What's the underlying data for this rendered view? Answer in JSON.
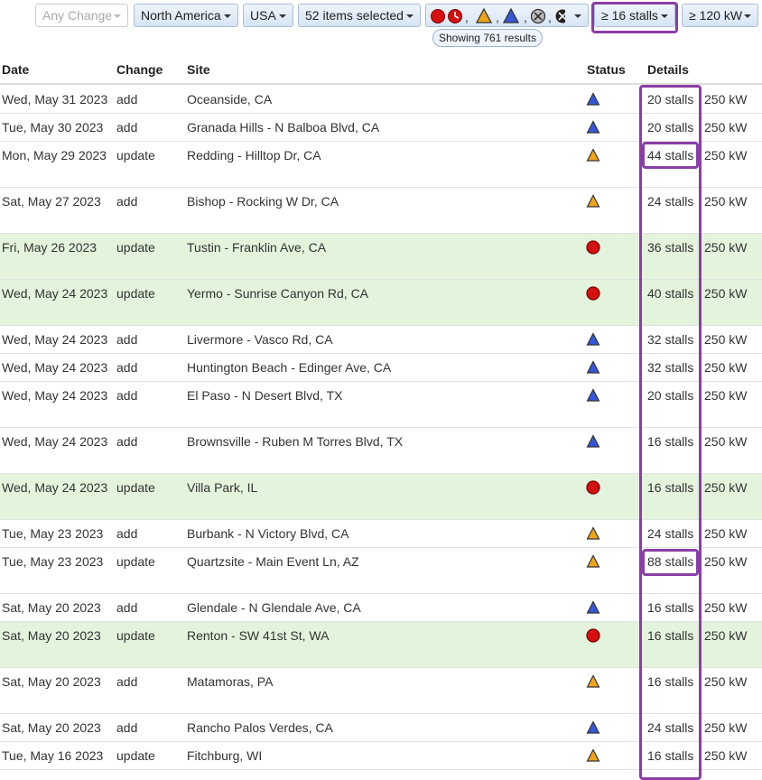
{
  "filters": {
    "change": "Any Change",
    "region": "North America",
    "country": "USA",
    "items": "52 items selected",
    "separator": ",",
    "stalls": "≥ 16 stalls",
    "power": "≥ 120 kW",
    "results": "Showing 761 results"
  },
  "table": {
    "headers": [
      "Date",
      "Change",
      "Site",
      "Status",
      "Details"
    ],
    "rows": [
      {
        "date": "Wed, May 31 2023",
        "change": "add",
        "site": "Oceanside, CA",
        "status": "triangle",
        "color": "#3557d6",
        "stalls": "20 stalls",
        "power": "250 kW",
        "highlight": false
      },
      {
        "date": "Tue, May 30 2023",
        "change": "add",
        "site": "Granada Hills - N Balboa Blvd, CA",
        "status": "triangle",
        "color": "#3557d6",
        "stalls": "20 stalls",
        "power": "250 kW",
        "highlight": false
      },
      {
        "date": "Mon, May 29 2023",
        "change": "update",
        "site": "Redding - Hilltop Dr, CA",
        "status": "triangle",
        "color": "#f0a418",
        "stalls": "44 stalls",
        "power": "250 kW",
        "highlight": false
      },
      {
        "date": "Sat, May 27 2023",
        "change": "add",
        "site": "Bishop - Rocking W Dr, CA",
        "status": "triangle",
        "color": "#f0a418",
        "stalls": "24 stalls",
        "power": "250 kW",
        "highlight": false
      },
      {
        "date": "Fri, May 26 2023",
        "change": "update",
        "site": "Tustin - Franklin Ave, CA",
        "status": "circle",
        "color": "#d41010",
        "stalls": "36 stalls",
        "power": "250 kW",
        "highlight": true
      },
      {
        "date": "Wed, May 24 2023",
        "change": "update",
        "site": "Yermo - Sunrise Canyon Rd, CA",
        "status": "circle",
        "color": "#d41010",
        "stalls": "40 stalls",
        "power": "250 kW",
        "highlight": true
      },
      {
        "date": "Wed, May 24 2023",
        "change": "add",
        "site": "Livermore - Vasco Rd, CA",
        "status": "triangle",
        "color": "#3557d6",
        "stalls": "32 stalls",
        "power": "250 kW",
        "highlight": false
      },
      {
        "date": "Wed, May 24 2023",
        "change": "add",
        "site": "Huntington Beach - Edinger Ave, CA",
        "status": "triangle",
        "color": "#3557d6",
        "stalls": "32 stalls",
        "power": "250 kW",
        "highlight": false
      },
      {
        "date": "Wed, May 24 2023",
        "change": "add",
        "site": "El Paso - N Desert Blvd, TX",
        "status": "triangle",
        "color": "#3557d6",
        "stalls": "20 stalls",
        "power": "250 kW",
        "highlight": false
      },
      {
        "date": "Wed, May 24 2023",
        "change": "add",
        "site": "Brownsville - Ruben M Torres Blvd, TX",
        "status": "triangle",
        "color": "#3557d6",
        "stalls": "16 stalls",
        "power": "250 kW",
        "highlight": false
      },
      {
        "date": "Wed, May 24 2023",
        "change": "update",
        "site": "Villa Park, IL",
        "status": "circle",
        "color": "#d41010",
        "stalls": "16 stalls",
        "power": "250 kW",
        "highlight": true
      },
      {
        "date": "Tue, May 23 2023",
        "change": "add",
        "site": "Burbank - N Victory Blvd, CA",
        "status": "triangle",
        "color": "#f0a418",
        "stalls": "24 stalls",
        "power": "250 kW",
        "highlight": false
      },
      {
        "date": "Tue, May 23 2023",
        "change": "update",
        "site": "Quartzsite - Main Event Ln, AZ",
        "status": "triangle",
        "color": "#f0a418",
        "stalls": "88 stalls",
        "power": "250 kW",
        "highlight": false
      },
      {
        "date": "Sat, May 20 2023",
        "change": "add",
        "site": "Glendale - N Glendale Ave, CA",
        "status": "triangle",
        "color": "#3557d6",
        "stalls": "16 stalls",
        "power": "250 kW",
        "highlight": false
      },
      {
        "date": "Sat, May 20 2023",
        "change": "update",
        "site": "Renton - SW 41st St, WA",
        "status": "circle",
        "color": "#d41010",
        "stalls": "16 stalls",
        "power": "250 kW",
        "highlight": true
      },
      {
        "date": "Sat, May 20 2023",
        "change": "add",
        "site": "Matamoras, PA",
        "status": "triangle",
        "color": "#f0a418",
        "stalls": "16 stalls",
        "power": "250 kW",
        "highlight": false
      },
      {
        "date": "Sat, May 20 2023",
        "change": "add",
        "site": "Rancho Palos Verdes, CA",
        "status": "triangle",
        "color": "#3557d6",
        "stalls": "24 stalls",
        "power": "250 kW",
        "highlight": false
      },
      {
        "date": "Tue, May 16 2023",
        "change": "update",
        "site": "Fitchburg, WI",
        "status": "triangle",
        "color": "#f0a418",
        "stalls": "16 stalls",
        "power": "250 kW",
        "highlight": false
      }
    ]
  }
}
